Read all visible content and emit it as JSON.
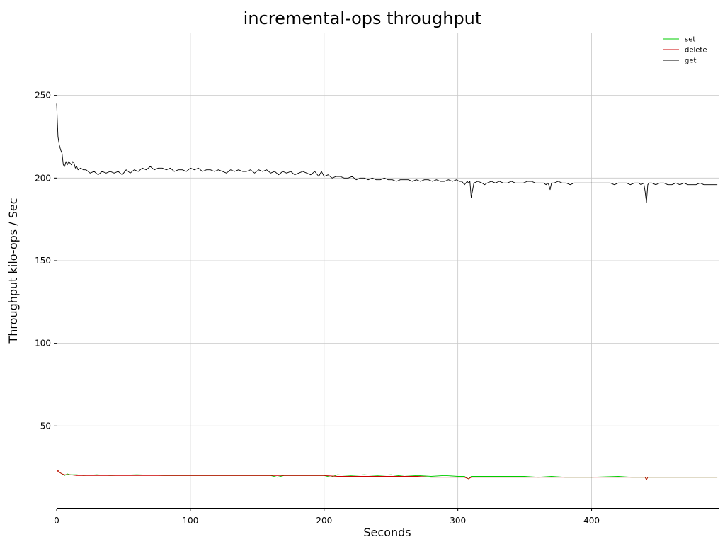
{
  "chart_data": {
    "type": "line",
    "title": "incremental-ops throughput",
    "xlabel": "Seconds",
    "ylabel": "Throughput kilo-ops / Sec",
    "xlim": [
      0,
      495
    ],
    "ylim": [
      0,
      288
    ],
    "xticks": [
      0,
      100,
      200,
      300,
      400
    ],
    "yticks": [
      50,
      100,
      150,
      200,
      250
    ],
    "grid": true,
    "legend_position": "top-right",
    "series": [
      {
        "name": "set",
        "color": "#00cc00",
        "x": [
          0,
          1,
          2,
          4,
          6,
          8,
          10,
          15,
          20,
          30,
          40,
          60,
          80,
          100,
          120,
          140,
          160,
          165,
          170,
          180,
          200,
          205,
          210,
          220,
          230,
          240,
          250,
          260,
          270,
          280,
          290,
          300,
          305,
          308,
          310,
          320,
          330,
          340,
          350,
          360,
          370,
          380,
          400,
          420,
          430,
          440,
          441,
          442,
          450,
          470,
          494
        ],
        "y": [
          22,
          23,
          22,
          21,
          20,
          21,
          20.5,
          20.5,
          20,
          20.5,
          20,
          20.5,
          20,
          20,
          20,
          20,
          20,
          19,
          20,
          20,
          20,
          19,
          20.5,
          20,
          20.5,
          20,
          20.5,
          19.5,
          20,
          19.5,
          20,
          19.5,
          19.5,
          18,
          19.5,
          19.5,
          19.5,
          19.5,
          19.5,
          19,
          19.5,
          19,
          19,
          19.5,
          19,
          19,
          17.5,
          19,
          19,
          19,
          19
        ]
      },
      {
        "name": "delete",
        "color": "#cc0000",
        "x": [
          0,
          1,
          2,
          4,
          6,
          8,
          10,
          15,
          20,
          30,
          40,
          60,
          80,
          100,
          120,
          140,
          160,
          180,
          200,
          210,
          220,
          230,
          240,
          250,
          260,
          270,
          280,
          290,
          300,
          305,
          308,
          310,
          320,
          330,
          340,
          350,
          360,
          370,
          380,
          400,
          420,
          430,
          440,
          441,
          442,
          450,
          470,
          494
        ],
        "y": [
          22,
          23,
          22,
          21,
          20.5,
          20.5,
          20.5,
          20,
          20,
          20,
          20,
          20,
          20,
          20,
          20,
          20,
          20,
          20,
          20,
          19.5,
          19.5,
          19.5,
          19.5,
          19.5,
          19.5,
          19.5,
          19,
          19,
          19,
          19,
          18,
          19,
          19,
          19,
          19,
          19,
          19,
          19,
          19,
          19,
          19,
          19,
          19,
          17.5,
          19,
          19,
          19,
          19
        ]
      },
      {
        "name": "get",
        "color": "#000000",
        "x": [
          0,
          1,
          2,
          3,
          4,
          5,
          6,
          7,
          8,
          9,
          10,
          11,
          12,
          13,
          14,
          15,
          16,
          18,
          20,
          22,
          25,
          28,
          31,
          34,
          37,
          40,
          43,
          46,
          49,
          52,
          55,
          58,
          61,
          64,
          67,
          70,
          73,
          76,
          79,
          82,
          85,
          88,
          91,
          94,
          97,
          100,
          103,
          106,
          109,
          112,
          115,
          118,
          121,
          124,
          127,
          130,
          133,
          136,
          139,
          142,
          145,
          148,
          151,
          154,
          157,
          160,
          163,
          166,
          169,
          172,
          175,
          178,
          181,
          184,
          187,
          190,
          193,
          196,
          198,
          200,
          203,
          206,
          209,
          212,
          215,
          218,
          221,
          224,
          227,
          230,
          233,
          236,
          239,
          242,
          245,
          248,
          251,
          254,
          257,
          260,
          263,
          266,
          269,
          272,
          275,
          278,
          281,
          284,
          287,
          290,
          293,
          296,
          299,
          301,
          303,
          305,
          307,
          308,
          309,
          310,
          312,
          315,
          318,
          320,
          322,
          325,
          328,
          331,
          334,
          337,
          340,
          343,
          346,
          349,
          352,
          355,
          358,
          361,
          364,
          366,
          367,
          368,
          369,
          370,
          372,
          375,
          378,
          381,
          384,
          387,
          390,
          393,
          396,
          399,
          402,
          405,
          408,
          411,
          414,
          417,
          420,
          423,
          426,
          429,
          432,
          435,
          437,
          439,
          440,
          441,
          442,
          443,
          445,
          448,
          451,
          454,
          457,
          460,
          463,
          466,
          469,
          472,
          475,
          478,
          481,
          484,
          487,
          490,
          492,
          494
        ],
        "y": [
          245,
          225,
          220,
          217,
          215,
          208,
          207,
          210,
          208,
          210,
          209,
          208,
          210,
          209,
          206,
          207,
          205,
          206,
          205,
          205,
          203,
          204,
          202,
          204,
          203,
          204,
          203,
          204,
          202,
          205,
          203,
          205,
          204,
          206,
          205,
          207,
          205,
          206,
          206,
          205,
          206,
          204,
          205,
          205,
          204,
          206,
          205,
          206,
          204,
          205,
          205,
          204,
          205,
          204,
          203,
          205,
          204,
          205,
          204,
          204,
          205,
          203,
          205,
          204,
          205,
          203,
          204,
          202,
          204,
          203,
          204,
          202,
          203,
          204,
          203,
          202,
          204,
          201,
          204,
          201,
          202,
          200,
          201,
          201,
          200,
          200,
          201,
          199,
          200,
          200,
          199,
          200,
          199,
          199,
          200,
          199,
          199,
          198,
          199,
          199,
          199,
          198,
          199,
          198,
          199,
          199,
          198,
          199,
          198,
          198,
          199,
          198,
          199,
          198,
          198,
          196,
          198,
          197,
          198,
          188,
          197,
          198,
          197,
          196,
          197,
          198,
          197,
          198,
          197,
          197,
          198,
          197,
          197,
          197,
          198,
          198,
          197,
          197,
          197,
          196,
          197,
          196,
          193,
          197,
          197,
          198,
          197,
          197,
          196,
          197,
          197,
          197,
          197,
          197,
          197,
          197,
          197,
          197,
          197,
          196,
          197,
          197,
          197,
          196,
          197,
          197,
          196,
          197,
          192,
          185,
          196,
          197,
          197,
          196,
          197,
          197,
          196,
          196,
          197,
          196,
          197,
          196,
          196,
          196,
          197,
          196,
          196,
          196,
          196,
          196
        ]
      }
    ]
  }
}
